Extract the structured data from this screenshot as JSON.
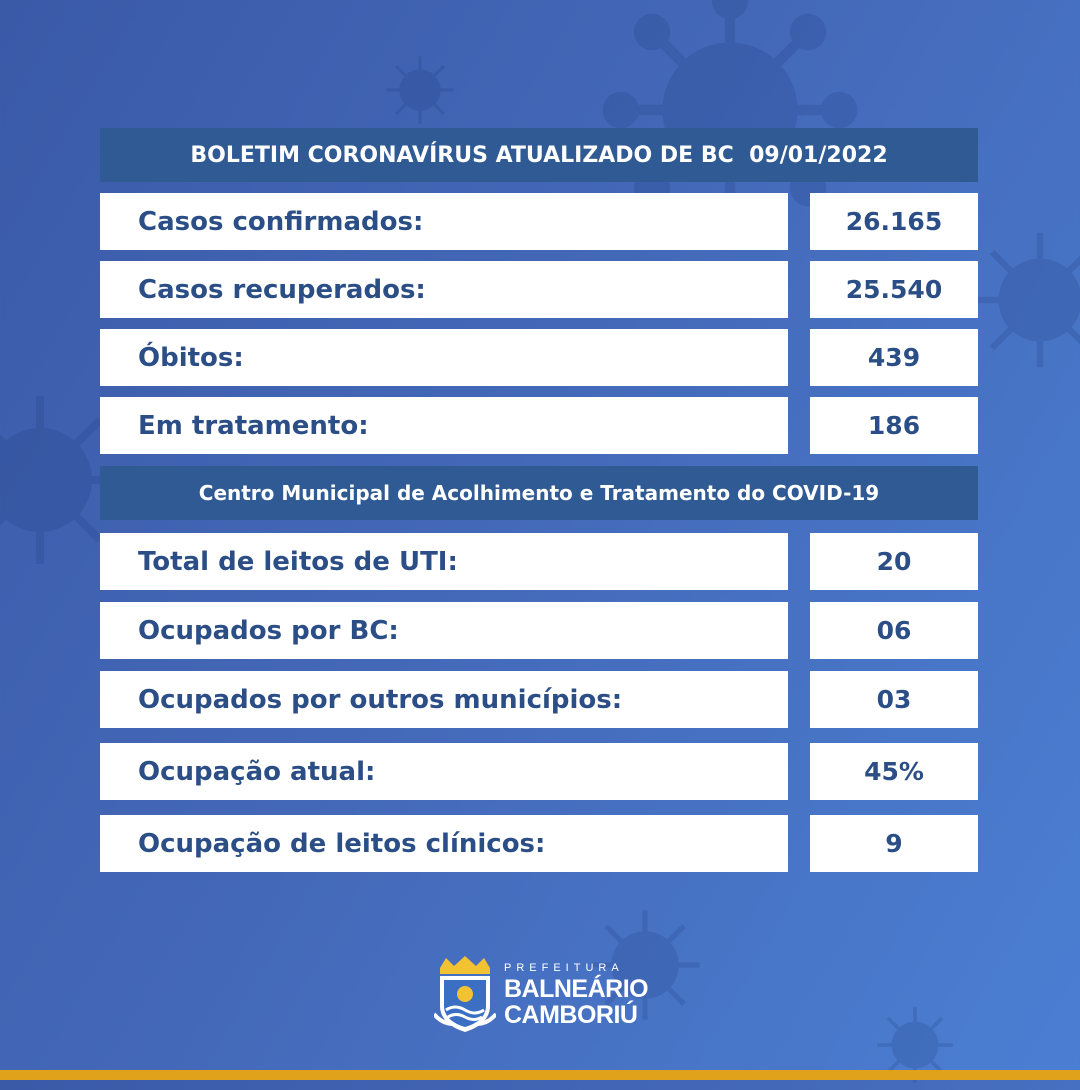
{
  "header": {
    "title": "BOLETIM CORONAVÍRUS ATUALIZADO DE BC  09/01/2022"
  },
  "stats": [
    {
      "label": "Casos confirmados:",
      "value": "26.165"
    },
    {
      "label": "Casos recuperados:",
      "value": "25.540"
    },
    {
      "label": "Óbitos:",
      "value": "439"
    },
    {
      "label": "Em tratamento:",
      "value": "186"
    }
  ],
  "section": {
    "title": "Centro Municipal de Acolhimento e Tratamento do COVID-19"
  },
  "beds": [
    {
      "label": "Total de leitos de UTI:",
      "value": "20"
    },
    {
      "label": "Ocupados por BC:",
      "value": "06"
    },
    {
      "label": "Ocupados por outros municípios:",
      "value": "03"
    },
    {
      "label": "Ocupação atual:",
      "value": "45%"
    },
    {
      "label": "Ocupação de leitos clínicos:",
      "value": "9"
    }
  ],
  "logo": {
    "prefix": "PREFEITURA",
    "line1": "BALNEÁRIO",
    "line2": "CAMBORIÚ",
    "icon": "city-crest-icon"
  },
  "colors": {
    "background": "#4468b8",
    "bar": "#2f5a94",
    "text": "#2b4e86",
    "accent_strip": "#e0a21b"
  }
}
